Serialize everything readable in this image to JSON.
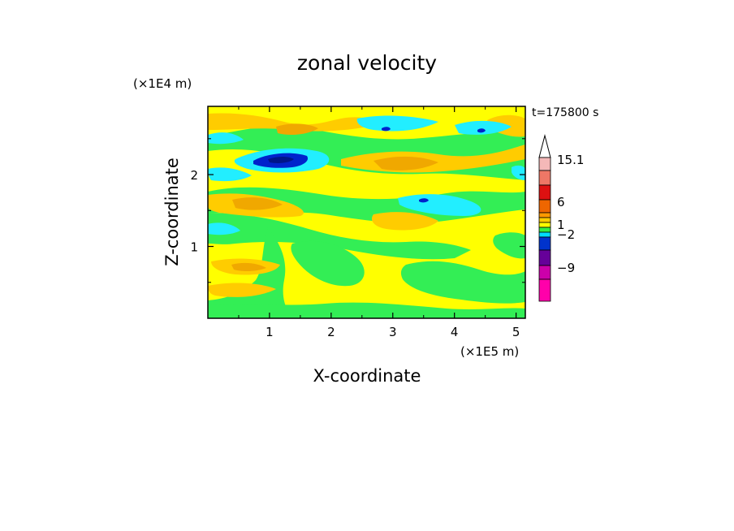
{
  "chart_data": {
    "type": "heatmap",
    "title": "zonal velocity",
    "xlabel": "X-coordinate",
    "ylabel": "Z-coordinate",
    "x_scale_label": "(×1E5 m)",
    "y_scale_label": "(×1E4 m)",
    "time_label": "t=175800 s",
    "xlim": [
      0,
      5.15
    ],
    "ylim": [
      0,
      2.95
    ],
    "x_ticks": [
      "1",
      "2",
      "3",
      "4",
      "5"
    ],
    "y_ticks": [
      "1",
      "2"
    ],
    "colorbar": {
      "labels": [
        "15.1",
        "6",
        "1",
        "−2",
        "−9"
      ],
      "colors_top_to_bottom": [
        "#f4b8b8",
        "#ee7766",
        "#dd1111",
        "#ee6600",
        "#ff9900",
        "#ffcc00",
        "#ffff00",
        "#33ee44",
        "#00ddff",
        "#0033cc",
        "#660099",
        "#cc00aa",
        "#ff00aa"
      ]
    },
    "field_colors": {
      "cyan": "#22eeff",
      "green": "#33ee55",
      "yellow": "#ffff00",
      "light_orange": "#ffcc00",
      "orange": "#f0a800",
      "blue": "#0022cc",
      "dark_blue": "#001488"
    }
  }
}
